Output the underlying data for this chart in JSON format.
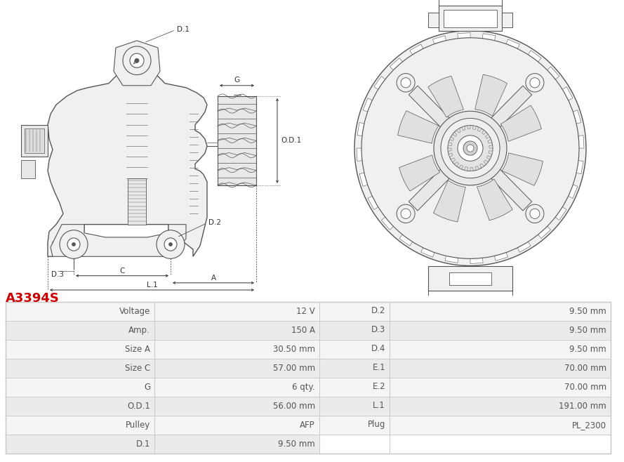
{
  "title": "A3394S",
  "title_color": "#cc0000",
  "table_data": [
    [
      "Voltage",
      "12 V",
      "D.2",
      "9.50 mm"
    ],
    [
      "Amp.",
      "150 A",
      "D.3",
      "9.50 mm"
    ],
    [
      "Size A",
      "30.50 mm",
      "D.4",
      "9.50 mm"
    ],
    [
      "Size C",
      "57.00 mm",
      "E.1",
      "70.00 mm"
    ],
    [
      "G",
      "6 qty.",
      "E.2",
      "70.00 mm"
    ],
    [
      "O.D.1",
      "56.00 mm",
      "L.1",
      "191.00 mm"
    ],
    [
      "Pulley",
      "AFP",
      "Plug",
      "PL_2300"
    ],
    [
      "D.1",
      "9.50 mm",
      "",
      ""
    ]
  ],
  "lc": "#555555",
  "fc_body": "#f0f0f0",
  "fc_dark": "#e0e0e0",
  "annot_color": "#333333",
  "row_bg_odd": "#f5f5f5",
  "row_bg_even": "#ebebeb",
  "border_color": "#cccccc",
  "text_color": "#555555",
  "image_bg": "#ffffff"
}
